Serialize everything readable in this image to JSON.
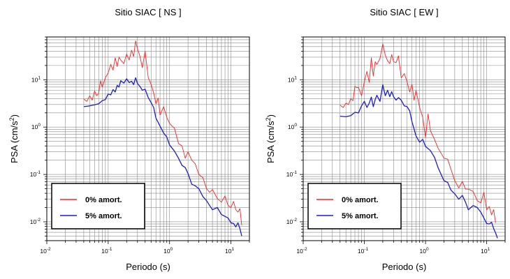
{
  "chart_data": [
    {
      "type": "line",
      "title": "Sitio SIAC [ NS ]",
      "xlabel": "Periodo (s)",
      "ylabel_main": "PSA (cm/s",
      "ylabel_sup": "2",
      "ylabel_tail": ")",
      "xscale": "log",
      "yscale": "log",
      "xlim": [
        0.01,
        20
      ],
      "ylim": [
        0.004,
        80
      ],
      "grid": true,
      "legend_position": "bottom-left",
      "x_tick_labels": [
        {
          "base": "10",
          "exp": "-2",
          "value": 0.01
        },
        {
          "base": "10",
          "exp": "-1",
          "value": 0.1
        },
        {
          "base": "10",
          "exp": "0",
          "value": 1
        },
        {
          "base": "10",
          "exp": "1",
          "value": 10
        }
      ],
      "y_tick_labels": [
        {
          "base": "10",
          "exp": "-2",
          "value": 0.01
        },
        {
          "base": "10",
          "exp": "-1",
          "value": 0.1
        },
        {
          "base": "10",
          "exp": "0",
          "value": 1
        },
        {
          "base": "10",
          "exp": "1",
          "value": 10
        }
      ],
      "series": [
        {
          "name": "0% amort.",
          "color": "#ff2020",
          "x": [
            0.04,
            0.045,
            0.05,
            0.055,
            0.06,
            0.065,
            0.07,
            0.075,
            0.08,
            0.09,
            0.1,
            0.11,
            0.12,
            0.13,
            0.14,
            0.15,
            0.16,
            0.18,
            0.2,
            0.22,
            0.24,
            0.26,
            0.28,
            0.3,
            0.33,
            0.36,
            0.4,
            0.45,
            0.5,
            0.55,
            0.6,
            0.65,
            0.7,
            0.8,
            0.9,
            1.0,
            1.1,
            1.2,
            1.4,
            1.6,
            1.8,
            2.0,
            2.3,
            2.6,
            3.0,
            3.5,
            4.0,
            4.5,
            5.0,
            6.0,
            7.0,
            8.0,
            9.0,
            10.0,
            11.0,
            12.0,
            13.0,
            14.0,
            15.0
          ],
          "y": [
            3.9,
            3.5,
            4.6,
            3.7,
            5.8,
            4.6,
            5.2,
            9.5,
            7.0,
            11.0,
            14.0,
            21.0,
            16.0,
            29.0,
            19.0,
            30.0,
            26.0,
            22.0,
            35.0,
            26.0,
            42.0,
            31.0,
            66.0,
            45.0,
            31.0,
            18.0,
            40.0,
            11.0,
            8.0,
            5.3,
            3.1,
            4.1,
            1.8,
            2.7,
            1.6,
            1.2,
            1.05,
            0.95,
            0.45,
            0.4,
            0.22,
            0.3,
            0.2,
            0.17,
            0.1,
            0.085,
            0.05,
            0.042,
            0.048,
            0.031,
            0.026,
            0.035,
            0.022,
            0.02,
            0.027,
            0.018,
            0.016,
            0.019,
            0.0085
          ]
        },
        {
          "name": "5% amort.",
          "color": "#1c1cd0",
          "x": [
            0.04,
            0.05,
            0.06,
            0.07,
            0.08,
            0.09,
            0.1,
            0.11,
            0.12,
            0.13,
            0.14,
            0.15,
            0.16,
            0.18,
            0.2,
            0.22,
            0.24,
            0.26,
            0.28,
            0.3,
            0.33,
            0.36,
            0.4,
            0.45,
            0.5,
            0.55,
            0.6,
            0.7,
            0.8,
            0.9,
            1.0,
            1.2,
            1.4,
            1.6,
            1.8,
            2.0,
            2.3,
            2.6,
            3.0,
            3.5,
            4.0,
            4.5,
            5.0,
            6.0,
            7.0,
            8.0,
            9.0,
            10.0,
            11.0,
            12.0,
            13.0,
            14.0,
            15.0
          ],
          "y": [
            2.7,
            2.8,
            2.95,
            3.1,
            3.6,
            3.8,
            5.0,
            4.8,
            6.2,
            5.5,
            7.6,
            7.0,
            9.5,
            8.5,
            10.5,
            8.7,
            9.3,
            7.9,
            11.0,
            8.3,
            7.2,
            6.0,
            6.3,
            4.2,
            3.3,
            2.6,
            1.55,
            1.05,
            0.75,
            0.62,
            0.42,
            0.31,
            0.22,
            0.155,
            0.14,
            0.105,
            0.062,
            0.058,
            0.05,
            0.034,
            0.028,
            0.022,
            0.018,
            0.02,
            0.0142,
            0.013,
            0.012,
            0.0095,
            0.0092,
            0.0078,
            0.0095,
            0.0072,
            0.005
          ]
        }
      ]
    },
    {
      "type": "line",
      "title": "Sitio SIAC [ EW ]",
      "xlabel": "Periodo (s)",
      "ylabel_main": "PSA (cm/s",
      "ylabel_sup": "2",
      "ylabel_tail": ")",
      "xscale": "log",
      "yscale": "log",
      "xlim": [
        0.01,
        20
      ],
      "ylim": [
        0.004,
        80
      ],
      "grid": true,
      "legend_position": "bottom-left",
      "x_tick_labels": [
        {
          "base": "10",
          "exp": "-2",
          "value": 0.01
        },
        {
          "base": "10",
          "exp": "-1",
          "value": 0.1
        },
        {
          "base": "10",
          "exp": "0",
          "value": 1
        },
        {
          "base": "10",
          "exp": "1",
          "value": 10
        }
      ],
      "y_tick_labels": [
        {
          "base": "10",
          "exp": "-2",
          "value": 0.01
        },
        {
          "base": "10",
          "exp": "-1",
          "value": 0.1
        },
        {
          "base": "10",
          "exp": "0",
          "value": 1
        },
        {
          "base": "10",
          "exp": "1",
          "value": 10
        }
      ],
      "series": [
        {
          "name": "0% amort.",
          "color": "#ff2020",
          "x": [
            0.04,
            0.045,
            0.05,
            0.055,
            0.06,
            0.065,
            0.07,
            0.075,
            0.08,
            0.09,
            0.1,
            0.11,
            0.12,
            0.13,
            0.14,
            0.15,
            0.16,
            0.18,
            0.2,
            0.22,
            0.24,
            0.26,
            0.28,
            0.3,
            0.33,
            0.36,
            0.4,
            0.45,
            0.5,
            0.55,
            0.6,
            0.65,
            0.7,
            0.8,
            0.9,
            1.0,
            1.1,
            1.2,
            1.4,
            1.6,
            1.8,
            2.0,
            2.3,
            2.6,
            3.0,
            3.5,
            4.0,
            4.5,
            5.0,
            6.0,
            7.0,
            8.0,
            9.0,
            10.0,
            11.0,
            12.0,
            13.0,
            14.0
          ],
          "y": [
            2.9,
            2.6,
            3.2,
            3.0,
            4.0,
            3.6,
            7.3,
            6.8,
            6.9,
            4.6,
            9.0,
            15.0,
            8.8,
            29.0,
            12.0,
            24.0,
            21.0,
            28.0,
            57.0,
            33.0,
            25.0,
            22.0,
            34.0,
            24.0,
            23.0,
            32.0,
            11.0,
            13.5,
            9.0,
            5.5,
            8.0,
            3.7,
            6.0,
            2.6,
            1.6,
            0.6,
            1.9,
            0.85,
            0.55,
            0.36,
            0.28,
            0.22,
            0.21,
            0.13,
            0.074,
            0.052,
            0.071,
            0.049,
            0.049,
            0.044,
            0.028,
            0.025,
            0.042,
            0.018,
            0.021,
            0.014,
            0.018,
            0.0095
          ]
        },
        {
          "name": "5% amort.",
          "color": "#1c1cd0",
          "x": [
            0.04,
            0.05,
            0.06,
            0.07,
            0.08,
            0.09,
            0.1,
            0.11,
            0.12,
            0.13,
            0.14,
            0.15,
            0.16,
            0.18,
            0.2,
            0.22,
            0.24,
            0.26,
            0.28,
            0.3,
            0.33,
            0.36,
            0.4,
            0.45,
            0.5,
            0.55,
            0.6,
            0.7,
            0.8,
            0.9,
            1.0,
            1.2,
            1.4,
            1.6,
            1.8,
            2.0,
            2.3,
            2.6,
            3.0,
            3.5,
            4.0,
            4.5,
            5.0,
            6.0,
            7.0,
            8.0,
            9.0,
            10.0,
            11.0,
            12.0,
            13.0,
            14.0,
            15.0
          ],
          "y": [
            1.7,
            1.65,
            1.75,
            2.05,
            2.0,
            2.8,
            3.5,
            2.6,
            3.2,
            4.3,
            2.7,
            3.8,
            4.7,
            3.5,
            7.8,
            4.6,
            6.0,
            4.4,
            5.6,
            4.4,
            3.7,
            4.2,
            3.7,
            2.8,
            2.7,
            2.2,
            1.3,
            0.65,
            0.48,
            0.55,
            0.39,
            0.32,
            0.23,
            0.14,
            0.1,
            0.074,
            0.068,
            0.047,
            0.039,
            0.03,
            0.036,
            0.026,
            0.018,
            0.022,
            0.02,
            0.016,
            0.012,
            0.0092,
            0.009,
            0.0098,
            0.0072,
            0.0058,
            0.0045
          ]
        }
      ]
    }
  ]
}
